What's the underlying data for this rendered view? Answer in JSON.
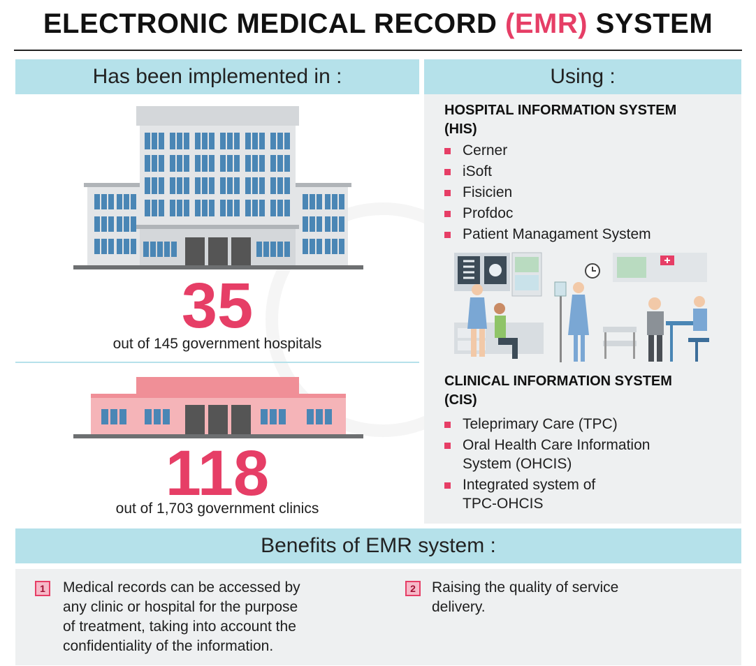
{
  "title": {
    "prefix": "ELECTRONIC MEDICAL RECORD ",
    "accent": "(EMR)",
    "suffix": " SYSTEM"
  },
  "implemented": {
    "heading": "Has been implemented in :",
    "hospitals": {
      "count": "35",
      "caption": "out of 145 government hospitals"
    },
    "clinics": {
      "count": "118",
      "caption": "out of 1,703 government clinics"
    }
  },
  "using": {
    "heading": "Using :",
    "his": {
      "title_line1": "HOSPITAL INFORMATION SYSTEM",
      "title_line2": "(HIS)",
      "items": [
        "Cerner",
        "iSoft",
        "Fisicien",
        "Profdoc",
        "Patient Managament System"
      ]
    },
    "cis": {
      "title_line1": "CLINICAL INFORMATION SYSTEM",
      "title_line2": "(CIS)",
      "items": [
        [
          "Teleprimary Care (TPC)"
        ],
        [
          "Oral Health Care Information",
          "System (OHCIS)"
        ],
        [
          "Integrated system of",
          "TPC-OHCIS"
        ]
      ]
    }
  },
  "benefits": {
    "heading": "Benefits of EMR system :",
    "items": [
      {
        "number": "1",
        "lines": [
          "Medical records can be accessed by",
          "any clinic or hospital for the purpose",
          "of treatment, taking into account the",
          "confidentiality of the information."
        ]
      },
      {
        "number": "2",
        "lines": [
          "Raising the quality of service",
          "delivery."
        ]
      }
    ]
  },
  "colors": {
    "accent": "#e63e66",
    "band": "#b5e1ea",
    "panel": "#eef0f1",
    "hospital": "#dcdfe2",
    "clinic": "#f5b4b8",
    "window": "#4a86b5"
  },
  "icons": [
    "hospital-building-icon",
    "clinic-building-icon",
    "medical-staff-illustration"
  ]
}
